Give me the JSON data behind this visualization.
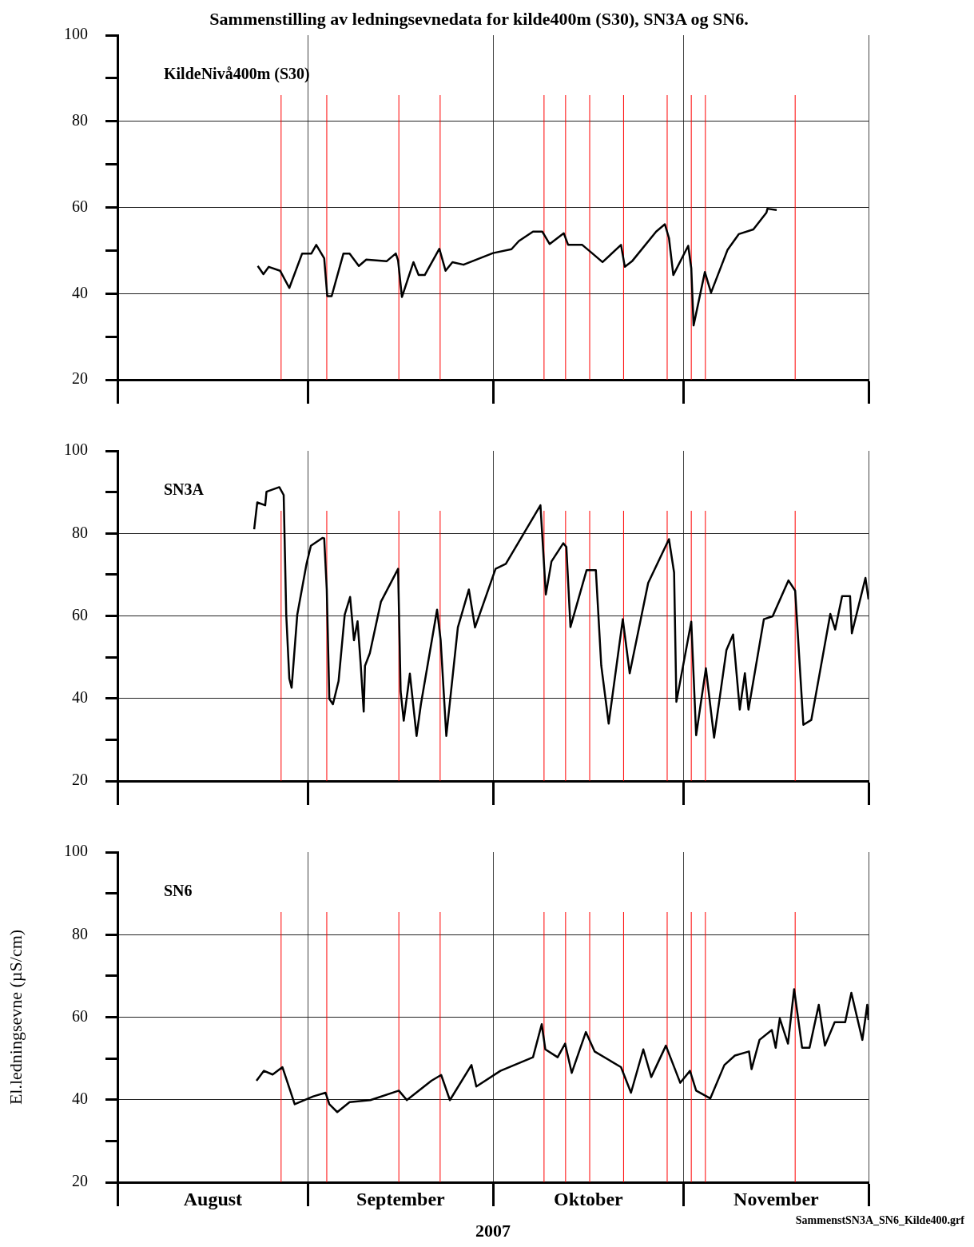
{
  "chart_data": [
    {
      "type": "line",
      "title": "Sammenstilling av ledningsevnedata for kilde400m (S30), SN3A og SN6.",
      "series": [
        {
          "name": "KildeNivå400m (S30)",
          "color": "#000000",
          "x": [
            "2007-08-23T19:00",
            "2007-08-24T17:00",
            "2007-08-25T14:00",
            "2007-08-27T10:00",
            "2007-08-28T22:00",
            "2007-08-31T00:00",
            "2007-09-01T12:00",
            "2007-09-02T07:00",
            "2007-09-03T14:00",
            "2007-09-04T02:00",
            "2007-09-04T19:00",
            "2007-09-06T17:00",
            "2007-09-07T17:00",
            "2007-09-09T05:00",
            "2007-09-10T10:00",
            "2007-09-13T17:00",
            "2007-09-15T05:00",
            "2007-09-15T14:00",
            "2007-09-16T05:00",
            "2007-09-18T02:00",
            "2007-09-18T22:00",
            "2007-09-19T22:00",
            "2007-09-22T07:00",
            "2007-09-23T07:00",
            "2007-09-24T10:00",
            "2007-09-26T05:00",
            "2007-10-01T00:00",
            "2007-10-04T00:00",
            "2007-10-05T05:00",
            "2007-10-07T12:00",
            "2007-10-09T00:00",
            "2007-10-10T05:00",
            "2007-10-12T12:00",
            "2007-10-13T05:00",
            "2007-10-15T12:00",
            "2007-10-17T02:00",
            "2007-10-18T19:00",
            "2007-10-21T19:00",
            "2007-10-22T10:00",
            "2007-10-23T14:00",
            "2007-10-27T12:00",
            "2007-10-28T22:00",
            "2007-10-29T14:00",
            "2007-10-30T07:00",
            "2007-11-01T17:00",
            "2007-11-02T05:00",
            "2007-11-02T14:00",
            "2007-11-04T10:00",
            "2007-11-05T10:00",
            "2007-11-08T02:00",
            "2007-11-09T22:00",
            "2007-11-12T07:00",
            "2007-11-14T10:00",
            "2007-11-14T14:00",
            "2007-11-16T02:00"
          ],
          "values": [
            46.4,
            44.5,
            46.2,
            45.3,
            41.3,
            49.3,
            49.3,
            51.3,
            48.2,
            39.4,
            39.4,
            49.3,
            49.3,
            46.4,
            47.9,
            47.5,
            49.3,
            47.7,
            39.2,
            47.3,
            44.3,
            44.3,
            50.4,
            45.3,
            47.3,
            46.7,
            49.4,
            50.3,
            52.2,
            54.4,
            54.4,
            51.5,
            54.0,
            51.3,
            51.3,
            49.4,
            47.3,
            51.3,
            46.2,
            47.5,
            54.4,
            56.1,
            52.9,
            44.3,
            51.1,
            45.9,
            32.6,
            45.0,
            40.2,
            50.1,
            53.8,
            54.9,
            58.8,
            59.7,
            59.4
          ]
        }
      ],
      "xlim": [
        "2007-08-01",
        "2007-12-01"
      ],
      "xticks": [
        {
          "value": "2007-08-01",
          "label": null
        },
        {
          "value": "2007-09-01",
          "label": null
        },
        {
          "value": "2007-10-01",
          "label": null
        },
        {
          "value": "2007-11-01",
          "label": null
        },
        {
          "value": "2007-12-01",
          "label": null
        }
      ],
      "ylim": [
        20,
        100
      ],
      "yticks": [
        20,
        {
          "value": 30,
          "label": null
        },
        40,
        {
          "value": 50,
          "label": null
        },
        60,
        {
          "value": 70,
          "label": null
        },
        80,
        {
          "value": 90,
          "label": null
        },
        100
      ],
      "grid": true,
      "tick_labels": "y",
      "ref_lines": [
        {
          "axis": "x",
          "value": "2007-08-27T14:00",
          "color": "#ff0000"
        },
        {
          "axis": "x",
          "value": "2007-09-04T00:00",
          "color": "#ff0000"
        },
        {
          "axis": "x",
          "value": "2007-09-15T17:00",
          "color": "#ff0000"
        },
        {
          "axis": "x",
          "value": "2007-09-22T10:00",
          "color": "#ff0000"
        },
        {
          "axis": "x",
          "value": "2007-10-09T07:00",
          "color": "#ff0000"
        },
        {
          "axis": "x",
          "value": "2007-10-12T19:00",
          "color": "#ff0000"
        },
        {
          "axis": "x",
          "value": "2007-10-16T17:00",
          "color": "#ff0000"
        },
        {
          "axis": "x",
          "value": "2007-10-22T05:00",
          "color": "#ff0000"
        },
        {
          "axis": "x",
          "value": "2007-10-29T07:00",
          "color": "#ff0000"
        },
        {
          "axis": "x",
          "value": "2007-11-02T05:00",
          "color": "#ff0000"
        },
        {
          "axis": "x",
          "value": "2007-11-04T12:00",
          "color": "#ff0000"
        },
        {
          "axis": "x",
          "value": "2007-11-19T02:00",
          "color": "#ff0000"
        }
      ]
    },
    {
      "type": "line",
      "series": [
        {
          "name": "SN3A",
          "color": "#000000",
          "x": [
            "2007-08-23T05:00",
            "2007-08-23T17:00",
            "2007-08-25T00:00",
            "2007-08-25T05:00",
            "2007-08-27T07:00",
            "2007-08-28T00:00",
            "2007-08-28T10:00",
            "2007-08-28T22:00",
            "2007-08-29T07:00",
            "2007-08-30T05:00",
            "2007-08-31T17:00",
            "2007-09-01T10:00",
            "2007-09-03T07:00",
            "2007-09-03T14:00",
            "2007-09-04T00:00",
            "2007-09-04T10:00",
            "2007-09-05T00:00",
            "2007-09-05T22:00",
            "2007-09-06T22:00",
            "2007-09-07T19:00",
            "2007-09-08T10:00",
            "2007-09-09T00:00",
            "2007-09-09T12:00",
            "2007-09-10T00:00",
            "2007-09-10T05:00",
            "2007-09-11T00:00",
            "2007-09-12T19:00",
            "2007-09-15T14:00",
            "2007-09-16T00:00",
            "2007-09-16T12:00",
            "2007-09-17T12:00",
            "2007-09-18T14:00",
            "2007-09-19T07:00",
            "2007-09-21T22:00",
            "2007-09-22T12:00",
            "2007-09-23T10:00",
            "2007-09-25T07:00",
            "2007-09-27T02:00",
            "2007-09-28T02:00",
            "2007-10-01T10:00",
            "2007-10-03T02:00",
            "2007-10-08T17:00",
            "2007-10-09T14:00",
            "2007-10-10T12:00",
            "2007-10-12T10:00",
            "2007-10-12T22:00",
            "2007-10-13T14:00",
            "2007-10-16T05:00",
            "2007-10-17T17:00",
            "2007-10-18T14:00",
            "2007-10-19T19:00",
            "2007-10-22T02:00",
            "2007-10-23T05:00",
            "2007-10-26T05:00",
            "2007-10-29T14:00",
            "2007-10-30T10:00",
            "2007-10-30T19:00",
            "2007-11-02T05:00",
            "2007-11-03T00:00",
            "2007-11-04T14:00",
            "2007-11-05T22:00",
            "2007-11-07T22:00",
            "2007-11-09T00:00",
            "2007-11-10T02:00",
            "2007-11-10T22:00",
            "2007-11-11T12:00",
            "2007-11-14T00:00",
            "2007-11-15T10:00",
            "2007-11-18T00:00",
            "2007-11-19T02:00",
            "2007-11-20T10:00",
            "2007-11-21T17:00",
            "2007-11-24T19:00",
            "2007-11-25T14:00",
            "2007-11-26T17:00",
            "2007-11-28T00:00",
            "2007-11-28T07:00",
            "2007-11-30T12:00",
            "2007-12-01T00:00"
          ],
          "values": [
            81.0,
            87.5,
            86.8,
            90.1,
            91.2,
            89.3,
            60.3,
            44.8,
            42.6,
            60.3,
            72.6,
            77.0,
            78.9,
            78.8,
            66.4,
            39.9,
            38.6,
            44.2,
            60.3,
            64.6,
            54.1,
            58.7,
            48.5,
            36.8,
            47.9,
            51.0,
            63.4,
            71.4,
            41.7,
            34.6,
            46.0,
            30.9,
            38.6,
            61.5,
            54.1,
            30.9,
            57.2,
            66.4,
            57.2,
            71.4,
            72.6,
            86.8,
            65.2,
            73.2,
            77.6,
            76.7,
            57.3,
            71.1,
            71.1,
            48.0,
            33.9,
            59.2,
            46.1,
            68.0,
            78.6,
            70.5,
            39.2,
            58.6,
            31.1,
            47.3,
            30.5,
            51.7,
            55.5,
            37.3,
            46.1,
            37.3,
            59.2,
            59.9,
            68.6,
            66.1,
            33.6,
            34.8,
            60.5,
            56.7,
            64.8,
            64.8,
            55.8,
            69.2,
            64.0
          ]
        }
      ],
      "xlim": [
        "2007-08-01",
        "2007-12-01"
      ],
      "xticks": [
        {
          "value": "2007-08-01",
          "label": null
        },
        {
          "value": "2007-09-01",
          "label": null
        },
        {
          "value": "2007-10-01",
          "label": null
        },
        {
          "value": "2007-11-01",
          "label": null
        },
        {
          "value": "2007-12-01",
          "label": null
        }
      ],
      "ylim": [
        20,
        100
      ],
      "yticks": [
        20,
        {
          "value": 30,
          "label": null
        },
        40,
        {
          "value": 50,
          "label": null
        },
        60,
        {
          "value": 70,
          "label": null
        },
        80,
        {
          "value": 90,
          "label": null
        },
        100
      ],
      "grid": true,
      "tick_labels": "y",
      "ref_lines": [
        {
          "axis": "x",
          "value": "2007-08-27T14:00",
          "color": "#ff0000"
        },
        {
          "axis": "x",
          "value": "2007-09-04T00:00",
          "color": "#ff0000"
        },
        {
          "axis": "x",
          "value": "2007-09-15T17:00",
          "color": "#ff0000"
        },
        {
          "axis": "x",
          "value": "2007-09-22T10:00",
          "color": "#ff0000"
        },
        {
          "axis": "x",
          "value": "2007-10-09T07:00",
          "color": "#ff0000"
        },
        {
          "axis": "x",
          "value": "2007-10-12T19:00",
          "color": "#ff0000"
        },
        {
          "axis": "x",
          "value": "2007-10-16T17:00",
          "color": "#ff0000"
        },
        {
          "axis": "x",
          "value": "2007-10-22T05:00",
          "color": "#ff0000"
        },
        {
          "axis": "x",
          "value": "2007-10-29T07:00",
          "color": "#ff0000"
        },
        {
          "axis": "x",
          "value": "2007-11-02T05:00",
          "color": "#ff0000"
        },
        {
          "axis": "x",
          "value": "2007-11-04T12:00",
          "color": "#ff0000"
        },
        {
          "axis": "x",
          "value": "2007-11-19T02:00",
          "color": "#ff0000"
        }
      ]
    },
    {
      "type": "line",
      "xlabel": "2007",
      "ylabel": "El.ledningsevne (µS/cm)",
      "annotations": [
        "SammenstSN3A_SN6_Kilde400.grf"
      ],
      "series": [
        {
          "name": "SN6",
          "color": "#000000",
          "x": [
            "2007-08-23T14:00",
            "2007-08-24T19:00",
            "2007-08-26T05:00",
            "2007-08-27T19:00",
            "2007-08-29T19:00",
            "2007-09-01T19:00",
            "2007-09-03T19:00",
            "2007-09-04T10:00",
            "2007-09-05T17:00",
            "2007-09-07T17:00",
            "2007-09-11T02:00",
            "2007-09-15T17:00",
            "2007-09-17T00:00",
            "2007-09-21T00:00",
            "2007-09-22T14:00",
            "2007-09-24T00:00",
            "2007-09-27T12:00",
            "2007-09-28T07:00",
            "2007-10-02T05:00",
            "2007-10-07T12:00",
            "2007-10-08T22:00",
            "2007-10-09T12:00",
            "2007-10-11T12:00",
            "2007-10-12T17:00",
            "2007-10-13T19:00",
            "2007-10-16T02:00",
            "2007-10-17T12:00",
            "2007-10-21T19:00",
            "2007-10-23T10:00",
            "2007-10-25T10:00",
            "2007-10-26T17:00",
            "2007-10-29T02:00",
            "2007-10-31T10:00",
            "2007-11-02T00:00",
            "2007-11-03T00:00",
            "2007-11-05T07:00",
            "2007-11-07T14:00",
            "2007-11-09T07:00",
            "2007-11-11T14:00",
            "2007-11-12T00:00",
            "2007-11-13T07:00",
            "2007-11-15T07:00",
            "2007-11-15T22:00",
            "2007-11-16T14:00",
            "2007-11-17T22:00",
            "2007-11-18T22:00",
            "2007-11-20T05:00",
            "2007-11-21T10:00",
            "2007-11-22T22:00",
            "2007-11-23T22:00",
            "2007-11-25T12:00",
            "2007-11-27T05:00",
            "2007-11-28T05:00",
            "2007-11-30T00:00",
            "2007-11-30T19:00",
            "2007-12-01T00:00"
          ],
          "values": [
            44.6,
            47.0,
            46.1,
            47.9,
            38.9,
            40.8,
            41.7,
            38.9,
            37.0,
            39.4,
            39.9,
            42.2,
            39.9,
            44.6,
            46.0,
            39.9,
            48.4,
            43.2,
            47.0,
            50.3,
            58.3,
            52.2,
            50.3,
            53.6,
            46.5,
            56.4,
            51.7,
            47.9,
            41.7,
            52.2,
            45.5,
            53.1,
            44.1,
            47.0,
            42.2,
            40.3,
            48.4,
            50.7,
            51.7,
            47.4,
            54.5,
            56.9,
            52.6,
            59.7,
            53.6,
            66.8,
            52.6,
            52.6,
            63.0,
            53.1,
            58.8,
            58.8,
            65.9,
            54.5,
            63.0,
            59.3
          ]
        }
      ],
      "xlim": [
        "2007-08-01",
        "2007-12-01"
      ],
      "xticks": [
        {
          "value": "2007-08-01",
          "label": null
        },
        {
          "value": "2007-08-16T12:00",
          "label": "August"
        },
        {
          "value": "2007-09-01",
          "label": null
        },
        {
          "value": "2007-09-16",
          "label": "September"
        },
        {
          "value": "2007-10-01",
          "label": null
        },
        {
          "value": "2007-10-16T12:00",
          "label": "Oktober"
        },
        {
          "value": "2007-11-01",
          "label": null
        },
        {
          "value": "2007-11-16",
          "label": "November"
        },
        {
          "value": "2007-12-01",
          "label": null
        }
      ],
      "ylim": [
        20,
        100
      ],
      "yticks": [
        20,
        {
          "value": 30,
          "label": null
        },
        40,
        {
          "value": 50,
          "label": null
        },
        60,
        {
          "value": 70,
          "label": null
        },
        80,
        {
          "value": 90,
          "label": null
        },
        100
      ],
      "grid": true,
      "ref_lines": [
        {
          "axis": "x",
          "value": "2007-08-27T14:00",
          "color": "#ff0000"
        },
        {
          "axis": "x",
          "value": "2007-09-04T00:00",
          "color": "#ff0000"
        },
        {
          "axis": "x",
          "value": "2007-09-15T17:00",
          "color": "#ff0000"
        },
        {
          "axis": "x",
          "value": "2007-09-22T10:00",
          "color": "#ff0000"
        },
        {
          "axis": "x",
          "value": "2007-10-09T07:00",
          "color": "#ff0000"
        },
        {
          "axis": "x",
          "value": "2007-10-12T19:00",
          "color": "#ff0000"
        },
        {
          "axis": "x",
          "value": "2007-10-16T17:00",
          "color": "#ff0000"
        },
        {
          "axis": "x",
          "value": "2007-10-22T05:00",
          "color": "#ff0000"
        },
        {
          "axis": "x",
          "value": "2007-10-29T07:00",
          "color": "#ff0000"
        },
        {
          "axis": "x",
          "value": "2007-11-02T05:00",
          "color": "#ff0000"
        },
        {
          "axis": "x",
          "value": "2007-11-04T12:00",
          "color": "#ff0000"
        },
        {
          "axis": "x",
          "value": "2007-11-19T02:00",
          "color": "#ff0000"
        }
      ]
    }
  ]
}
